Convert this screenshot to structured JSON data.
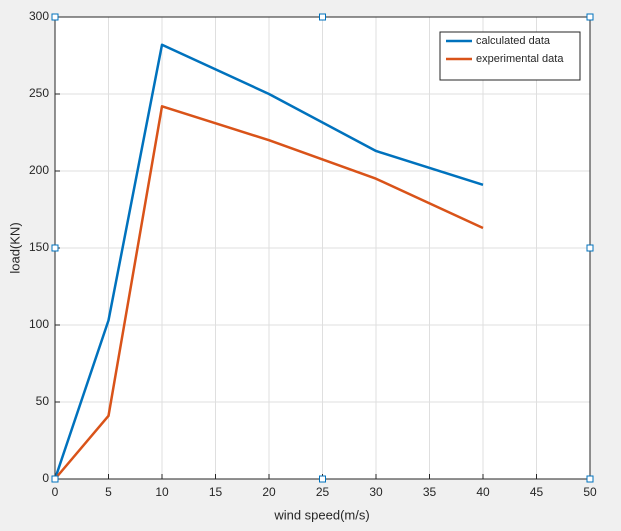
{
  "chart_data": {
    "type": "line",
    "x_label": "wind speed(m/s)",
    "y_label": "load(KN)",
    "x": [
      0,
      5,
      10,
      20,
      30,
      40
    ],
    "series": [
      {
        "name": "calculated data",
        "color": "#0072bd",
        "values": [
          0,
          103,
          282,
          250,
          213,
          191
        ]
      },
      {
        "name": "experimental data",
        "color": "#d95319",
        "values": [
          0,
          41,
          242,
          220,
          195,
          163
        ]
      }
    ],
    "xlim": [
      0,
      50
    ],
    "xticks": [
      0,
      5,
      10,
      15,
      20,
      25,
      30,
      35,
      40,
      45,
      50
    ],
    "ylim": [
      0,
      300
    ],
    "yticks": [
      0,
      50,
      100,
      150,
      200,
      250,
      300
    ],
    "grid": true,
    "legend": "northeast"
  }
}
